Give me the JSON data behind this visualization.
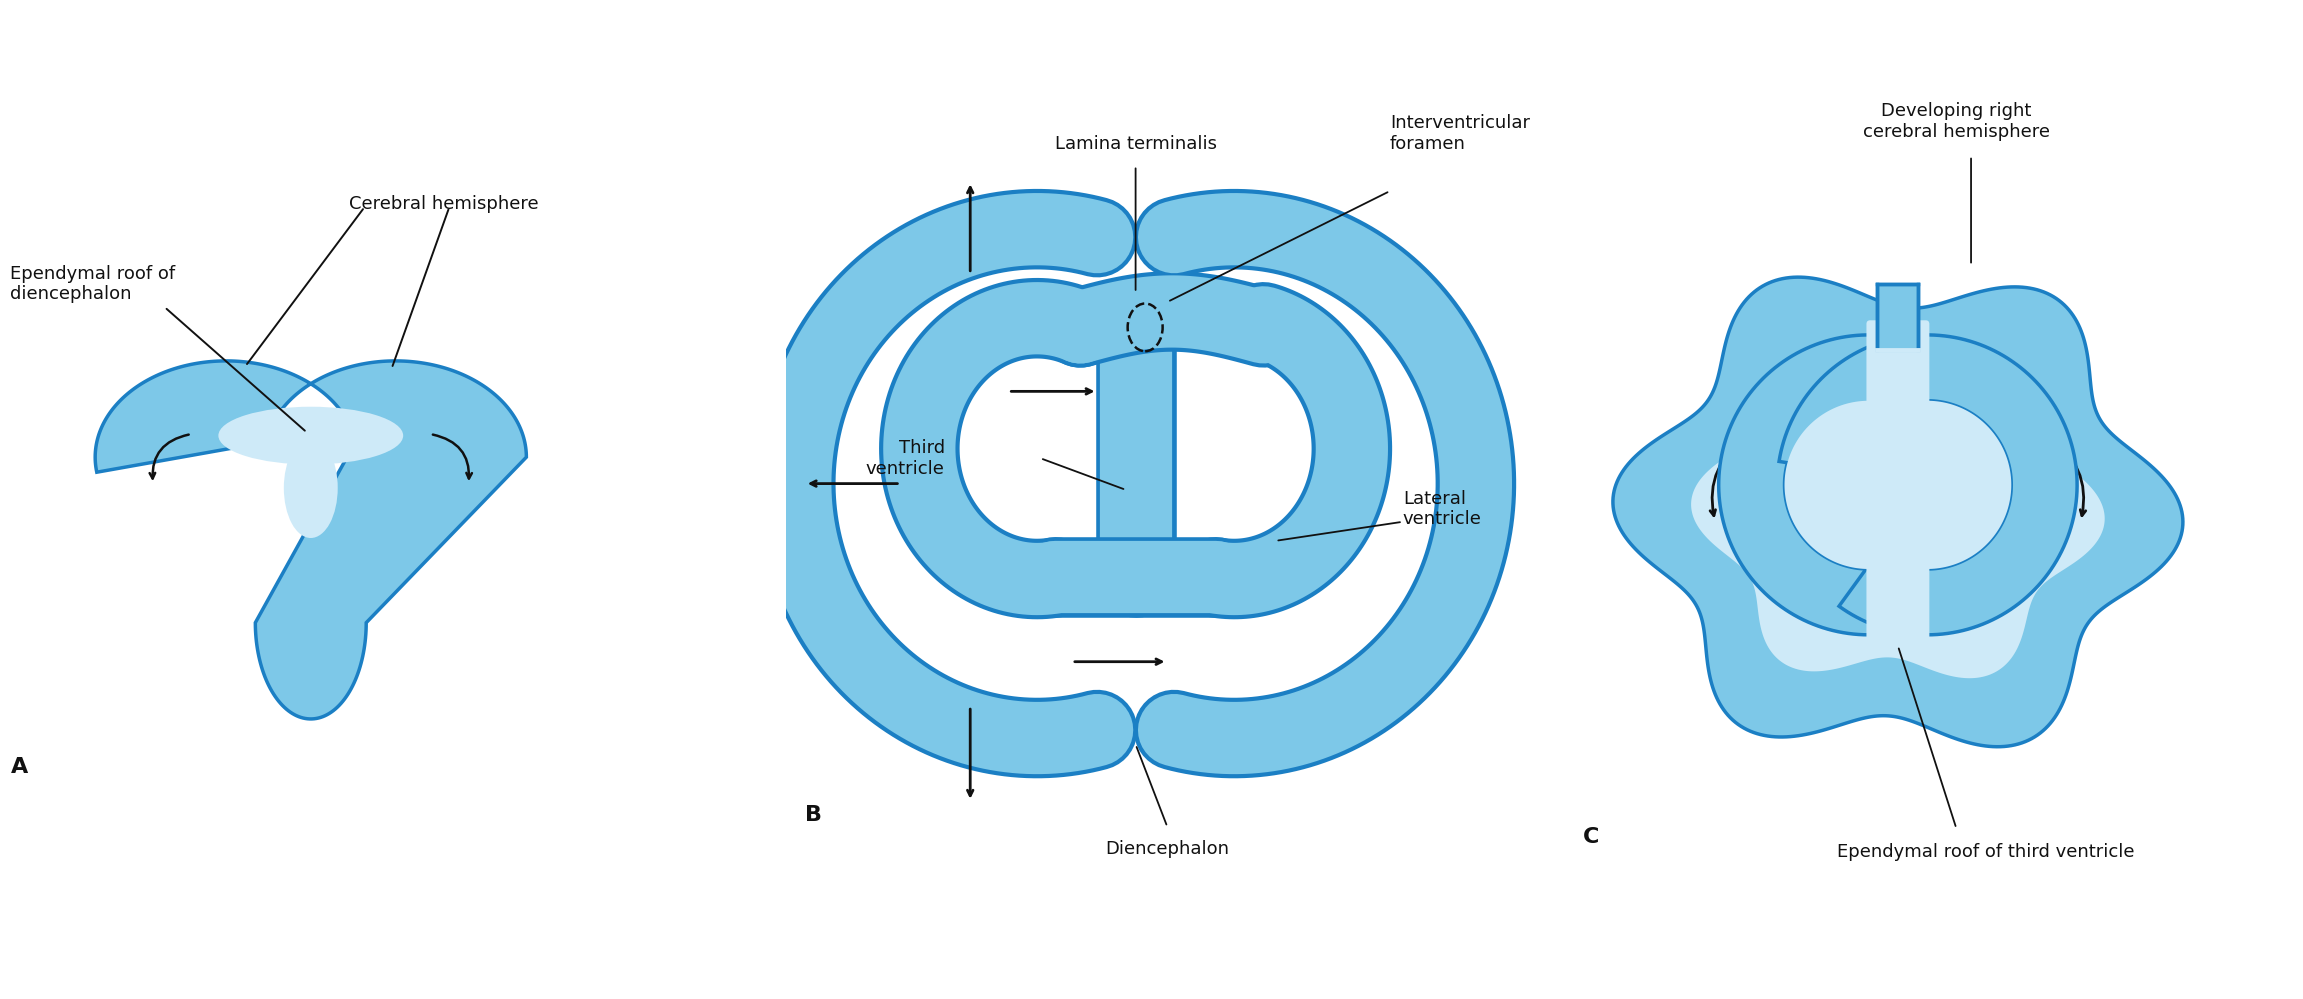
{
  "bg_color": "#ffffff",
  "outline_color": "#1b7fc4",
  "fill_outer": "#7dc8e8",
  "fill_inner": "#b8dff0",
  "fill_lighter": "#ceeaf8",
  "arrow_color": "#111111",
  "text_color": "#111111",
  "label_A": "A",
  "label_B": "B",
  "label_C": "C",
  "ann_A_ependymal": "Ependymal roof of\ndiencephalon",
  "ann_A_cerebral": "Cerebral hemisphere",
  "ann_B_lamina": "Lamina terminalis",
  "ann_B_interventricular": "Interventricular\nforamen",
  "ann_B_third": "Third\nventricle",
  "ann_B_lateral": "Lateral\nventricle",
  "ann_B_diencephalon": "Diencephalon",
  "ann_C_developing": "Developing right\ncerebral hemisphere",
  "ann_C_ependymal": "Ependymal roof of third ventricle",
  "label_fontsize": 16,
  "ann_fontsize": 13
}
